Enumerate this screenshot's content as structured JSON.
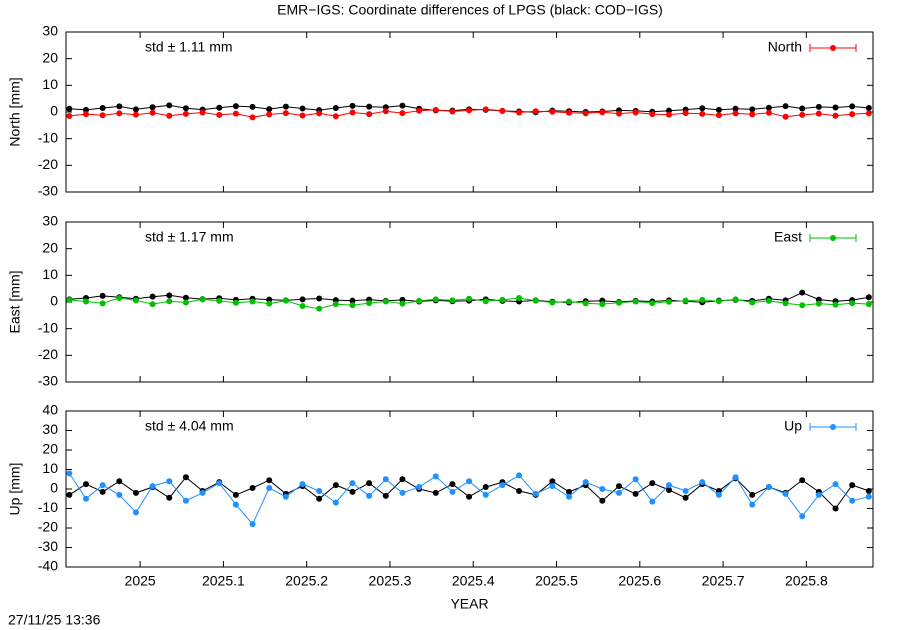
{
  "title": "EMR−IGS: Coordinate differences of LPGS (black: COD−IGS)",
  "timestamp": "27/11/25 13:36",
  "chart_data": [
    {
      "type": "line",
      "ylabel": "North [mm]",
      "annotation": "std ± 1.11 mm",
      "xlim": [
        2024.911,
        2025.88
      ],
      "ylim": [
        -30,
        30
      ],
      "yticks": [
        -30,
        -20,
        -10,
        0,
        10,
        20,
        30
      ],
      "legend": "top-right",
      "x": [
        2024.915,
        2024.935,
        2024.955,
        2024.975,
        2024.995,
        2025.015,
        2025.035,
        2025.055,
        2025.075,
        2025.095,
        2025.115,
        2025.135,
        2025.155,
        2025.175,
        2025.195,
        2025.215,
        2025.235,
        2025.255,
        2025.275,
        2025.295,
        2025.315,
        2025.335,
        2025.355,
        2025.375,
        2025.395,
        2025.415,
        2025.435,
        2025.455,
        2025.475,
        2025.495,
        2025.515,
        2025.535,
        2025.555,
        2025.575,
        2025.595,
        2025.615,
        2025.635,
        2025.655,
        2025.675,
        2025.695,
        2025.715,
        2025.735,
        2025.755,
        2025.775,
        2025.795,
        2025.815,
        2025.835,
        2025.855,
        2025.875
      ],
      "series": [
        {
          "color": "#000000",
          "values": [
            1.2,
            0.8,
            1.5,
            2.1,
            1.0,
            1.8,
            2.5,
            1.4,
            0.9,
            1.6,
            2.2,
            1.9,
            1.1,
            2.0,
            1.3,
            0.7,
            1.5,
            2.3,
            2.0,
            1.8,
            2.4,
            1.2,
            0.6,
            0.5,
            1.0,
            0.8,
            0.4,
            0.2,
            -0.1,
            0.5,
            0.3,
            0.0,
            0.2,
            0.6,
            0.4,
            0.1,
            0.5,
            0.9,
            1.4,
            0.8,
            1.2,
            1.0,
            1.6,
            2.2,
            1.3,
            1.9,
            1.7,
            2.1,
            1.5
          ]
        },
        {
          "name": "North",
          "color": "#ff0000",
          "values": [
            -1.5,
            -0.8,
            -1.2,
            -0.5,
            -1.0,
            -0.3,
            -1.4,
            -0.7,
            -0.2,
            -1.1,
            -0.6,
            -2.0,
            -0.9,
            -0.4,
            -1.3,
            -0.5,
            -1.6,
            -0.2,
            -0.8,
            0.3,
            -0.4,
            0.5,
            0.8,
            0.2,
            0.6,
            1.0,
            0.4,
            -0.2,
            0.3,
            0.1,
            -0.3,
            -0.5,
            -0.1,
            -0.6,
            -0.2,
            -0.8,
            -1.0,
            -0.4,
            -0.7,
            -1.2,
            -0.5,
            -0.9,
            -0.3,
            -1.8,
            -1.1,
            -0.6,
            -1.4,
            -0.8,
            -0.5
          ]
        }
      ]
    },
    {
      "type": "line",
      "ylabel": "East [mm]",
      "annotation": "std ± 1.17 mm",
      "xlim": [
        2024.911,
        2025.88
      ],
      "ylim": [
        -30,
        30
      ],
      "yticks": [
        -30,
        -20,
        -10,
        0,
        10,
        20,
        30
      ],
      "legend": "top-right",
      "x": [
        2024.915,
        2024.935,
        2024.955,
        2024.975,
        2024.995,
        2025.015,
        2025.035,
        2025.055,
        2025.075,
        2025.095,
        2025.115,
        2025.135,
        2025.155,
        2025.175,
        2025.195,
        2025.215,
        2025.235,
        2025.255,
        2025.275,
        2025.295,
        2025.315,
        2025.335,
        2025.355,
        2025.375,
        2025.395,
        2025.415,
        2025.435,
        2025.455,
        2025.475,
        2025.495,
        2025.515,
        2025.535,
        2025.555,
        2025.575,
        2025.595,
        2025.615,
        2025.635,
        2025.655,
        2025.675,
        2025.695,
        2025.715,
        2025.735,
        2025.755,
        2025.775,
        2025.795,
        2025.815,
        2025.835,
        2025.855,
        2025.875
      ],
      "series": [
        {
          "color": "#000000",
          "values": [
            1.0,
            1.5,
            2.3,
            1.8,
            1.2,
            2.0,
            2.5,
            1.6,
            1.1,
            1.4,
            0.8,
            1.2,
            0.9,
            0.6,
            1.0,
            1.3,
            0.7,
            0.5,
            0.9,
            0.4,
            0.8,
            0.2,
            0.6,
            0.3,
            0.5,
            1.0,
            0.4,
            0.2,
            0.6,
            0.1,
            -0.2,
            0.3,
            0.5,
            0.0,
            0.4,
            0.2,
            0.6,
            0.3,
            -0.1,
            0.5,
            0.8,
            0.4,
            1.2,
            0.6,
            3.5,
            0.9,
            0.3,
            0.7,
            1.8
          ]
        },
        {
          "name": "East",
          "color": "#00c000",
          "values": [
            0.8,
            0.2,
            -0.5,
            1.5,
            0.6,
            -0.8,
            0.3,
            -0.2,
            1.0,
            0.4,
            -0.3,
            0.2,
            -0.6,
            0.5,
            -1.5,
            -2.5,
            -0.8,
            -1.2,
            -0.4,
            0.2,
            -0.6,
            0.4,
            1.0,
            0.6,
            1.2,
            0.3,
            0.8,
            1.5,
            0.5,
            -0.2,
            0.2,
            -0.5,
            -0.8,
            -0.3,
            0.2,
            -0.4,
            0.1,
            0.5,
            0.8,
            0.3,
            1.0,
            -0.2,
            0.4,
            -0.5,
            -1.2,
            -0.6,
            -1.0,
            -0.4,
            -0.8
          ]
        }
      ]
    },
    {
      "type": "line",
      "ylabel": "Up [mm]",
      "xlabel": "YEAR",
      "annotation": "std ± 4.04 mm",
      "xlim": [
        2024.911,
        2025.88
      ],
      "xticks": [
        2025,
        2025.1,
        2025.2,
        2025.3,
        2025.4,
        2025.5,
        2025.6,
        2025.7,
        2025.8
      ],
      "ylim": [
        -40,
        40
      ],
      "yticks": [
        -40,
        -30,
        -20,
        -10,
        0,
        10,
        20,
        30,
        40
      ],
      "legend": "top-right",
      "x": [
        2024.915,
        2024.935,
        2024.955,
        2024.975,
        2024.995,
        2025.015,
        2025.035,
        2025.055,
        2025.075,
        2025.095,
        2025.115,
        2025.135,
        2025.155,
        2025.175,
        2025.195,
        2025.215,
        2025.235,
        2025.255,
        2025.275,
        2025.295,
        2025.315,
        2025.335,
        2025.355,
        2025.375,
        2025.395,
        2025.415,
        2025.435,
        2025.455,
        2025.475,
        2025.495,
        2025.515,
        2025.535,
        2025.555,
        2025.575,
        2025.595,
        2025.615,
        2025.635,
        2025.655,
        2025.675,
        2025.695,
        2025.715,
        2025.735,
        2025.755,
        2025.775,
        2025.795,
        2025.815,
        2025.835,
        2025.855,
        2025.875
      ],
      "series": [
        {
          "color": "#000000",
          "values": [
            -3.0,
            2.5,
            -1.5,
            4.0,
            -2.0,
            1.0,
            -4.5,
            6.0,
            -1.0,
            3.5,
            -3.0,
            0.5,
            4.5,
            -2.5,
            1.5,
            -5.0,
            2.0,
            -1.5,
            3.0,
            -3.5,
            5.0,
            0.0,
            -2.0,
            2.5,
            -4.0,
            1.0,
            3.5,
            -1.0,
            -3.0,
            4.0,
            -1.5,
            2.0,
            -6.0,
            1.5,
            -2.5,
            3.0,
            -0.5,
            -4.5,
            2.5,
            -1.0,
            5.5,
            -3.0,
            1.0,
            -2.0,
            4.5,
            -1.5,
            -10.0,
            2.0,
            -1.0
          ]
        },
        {
          "name": "Up",
          "color": "#1e90ff",
          "values": [
            8.0,
            -5.0,
            2.0,
            -3.0,
            -12.0,
            1.5,
            4.0,
            -6.0,
            -2.0,
            3.0,
            -8.0,
            -18.0,
            0.5,
            -4.0,
            2.5,
            -1.0,
            -7.0,
            3.0,
            -3.5,
            5.0,
            -2.0,
            1.0,
            6.5,
            -1.5,
            4.0,
            -3.0,
            2.0,
            7.0,
            -2.5,
            1.5,
            -4.0,
            3.5,
            0.0,
            -2.0,
            5.0,
            -6.5,
            2.0,
            -1.0,
            3.5,
            -3.0,
            6.0,
            -8.0,
            1.0,
            -2.5,
            -14.0,
            -3.0,
            2.5,
            -6.0,
            -4.0
          ]
        }
      ]
    }
  ]
}
